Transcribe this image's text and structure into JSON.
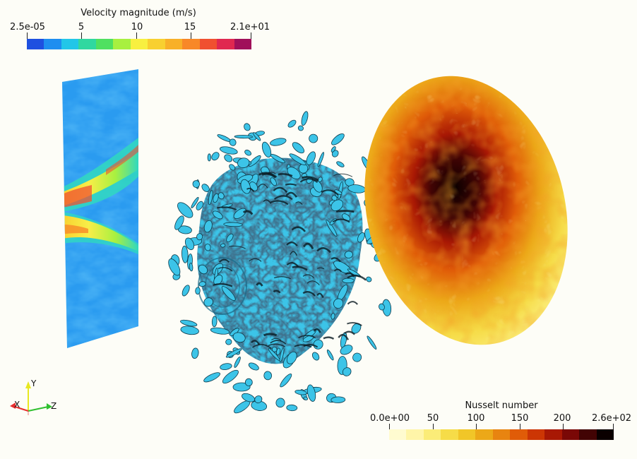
{
  "velocity_colorbar": {
    "title": "Velocity magnitude (m/s)",
    "ticks": [
      "2.5e-05",
      "5",
      "10",
      "15",
      "2.1e+01"
    ],
    "colors": [
      "#1e50e0",
      "#1e8ef0",
      "#22c6e8",
      "#30d8a0",
      "#50e060",
      "#a8f040",
      "#f8f040",
      "#f8d030",
      "#f8b028",
      "#f88828",
      "#f05030",
      "#e02850",
      "#a0105a"
    ]
  },
  "nusselt_colorbar": {
    "title": "Nusselt number",
    "ticks": [
      "0.0e+00",
      "50",
      "100",
      "150",
      "200",
      "2.6e+02"
    ],
    "colors": [
      "#fffbd0",
      "#fff5a8",
      "#fbec78",
      "#f6dc48",
      "#f1c628",
      "#eca818",
      "#e88410",
      "#e05c08",
      "#cc3604",
      "#a81804",
      "#7a0806",
      "#420404",
      "#0a0000"
    ]
  },
  "orientation_axes": {
    "y_label": "Y",
    "x_label": "X",
    "z_label": "Z",
    "colors": {
      "x": "#e83030",
      "y": "#e8e820",
      "z": "#30c030"
    }
  }
}
